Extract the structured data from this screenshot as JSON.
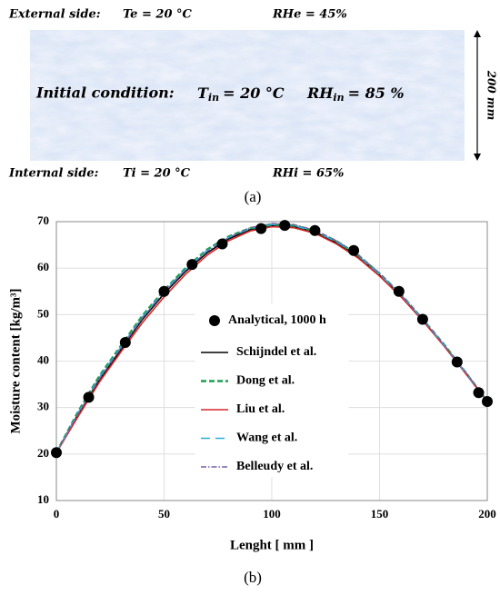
{
  "diagram": {
    "external": {
      "label": "External side:",
      "temp": "Te = 20 °C",
      "rh": "RHe = 45%"
    },
    "initial": {
      "label": "Initial condition:",
      "t_sym": "T",
      "t_sub": "in",
      "t_val": "= 20 °C",
      "rh_sym": "RH",
      "rh_sub": "in",
      "rh_val": "= 85 %"
    },
    "internal": {
      "label": "Internal side:",
      "temp": "Ti = 20 °C",
      "rh": "RHi = 65%"
    },
    "thickness": "200 mm",
    "caption": "(a)"
  },
  "chart_data": {
    "type": "line",
    "caption": "(b)",
    "xlabel": "Lenght [ mm ]",
    "ylabel": "Moisture content [kg/m³]",
    "xlim": [
      0,
      200
    ],
    "xticks": [
      0,
      50,
      100,
      150,
      200
    ],
    "ylim": [
      10,
      70
    ],
    "yticks": [
      10,
      20,
      30,
      40,
      50,
      60,
      70
    ],
    "grid": true,
    "legend": "center",
    "series": [
      {
        "name": "Analytical, 1000 h",
        "color": "#000000",
        "style": "markers",
        "x": [
          0,
          15,
          32,
          50,
          63,
          77,
          95,
          106,
          120,
          138,
          159,
          170,
          186,
          196,
          200
        ],
        "values": [
          20.3,
          32.2,
          44,
          55,
          60.8,
          65.2,
          68.5,
          69.2,
          68.1,
          63.8,
          55,
          49,
          39.8,
          33.2,
          31.3
        ]
      },
      {
        "name": "Schijndel et al.",
        "color": "#000000",
        "style": "solid",
        "x": [
          0,
          10,
          20,
          30,
          40,
          50,
          60,
          70,
          80,
          90,
          100,
          110,
          120,
          130,
          140,
          150,
          160,
          170,
          180,
          190,
          200
        ],
        "values": [
          20.3,
          28.5,
          36,
          42.5,
          49,
          54.5,
          59.3,
          63.3,
          66.3,
          68.3,
          69.2,
          69,
          67.8,
          65.5,
          62.5,
          58.5,
          54,
          48.8,
          43.3,
          37.5,
          31.3
        ]
      },
      {
        "name": "Dong et al.",
        "color": "#1e9e54",
        "style": "dashed",
        "x": [
          0,
          10,
          20,
          30,
          40,
          50,
          60,
          70,
          80,
          90,
          100,
          110,
          120,
          130,
          140,
          150,
          160,
          170,
          180,
          190,
          200
        ],
        "values": [
          20.3,
          29,
          36.8,
          43.3,
          49.8,
          55.2,
          60,
          64,
          66.8,
          68.6,
          69.4,
          69.2,
          68,
          65.8,
          62.8,
          58.8,
          54.3,
          49,
          43.5,
          37.5,
          31.3
        ]
      },
      {
        "name": "Liu et al.",
        "color": "#d62728",
        "style": "solid",
        "x": [
          0,
          10,
          20,
          30,
          40,
          50,
          60,
          70,
          80,
          90,
          100,
          110,
          120,
          130,
          140,
          150,
          160,
          170,
          180,
          190,
          200
        ],
        "values": [
          20.3,
          28,
          35.5,
          42,
          48.3,
          53.8,
          58.7,
          62.8,
          65.9,
          68,
          68.9,
          68.7,
          67.5,
          65.2,
          62.2,
          58.3,
          53.8,
          48.7,
          43.2,
          37.3,
          31.3
        ]
      },
      {
        "name": "Wang et al.",
        "color": "#2ab0d6",
        "style": "longdash",
        "x": [
          0,
          10,
          20,
          30,
          40,
          50,
          60,
          70,
          80,
          90,
          100,
          110,
          120,
          130,
          140,
          150,
          160,
          170,
          180,
          190,
          200
        ],
        "values": [
          20.3,
          28.8,
          36.5,
          43,
          49.5,
          55,
          59.8,
          63.8,
          66.6,
          68.5,
          69.4,
          69.2,
          67.9,
          65.7,
          62.7,
          58.7,
          54.2,
          49,
          43.4,
          37.5,
          31.3
        ]
      },
      {
        "name": "Belleudy et al.",
        "color": "#7b5ea7",
        "style": "dashdot",
        "x": [
          0,
          10,
          20,
          30,
          40,
          50,
          60,
          70,
          80,
          90,
          100,
          110,
          120,
          130,
          140,
          150,
          160,
          170,
          180,
          190,
          200
        ],
        "values": [
          20.3,
          28.6,
          36.2,
          42.8,
          49.3,
          54.8,
          59.6,
          63.6,
          66.6,
          68.7,
          69.6,
          69.4,
          68.2,
          65.9,
          62.9,
          58.9,
          54.3,
          49,
          43.5,
          37.6,
          31.3
        ]
      }
    ]
  }
}
